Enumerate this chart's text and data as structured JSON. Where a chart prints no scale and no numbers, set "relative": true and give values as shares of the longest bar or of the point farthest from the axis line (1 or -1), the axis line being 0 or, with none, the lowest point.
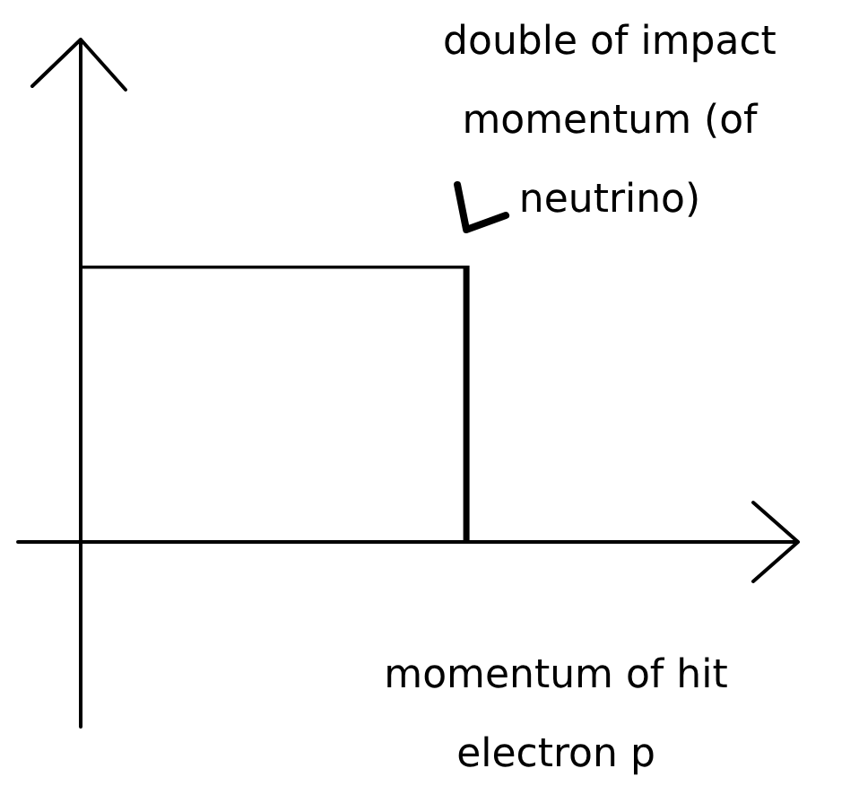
{
  "chart_data": {
    "type": "step",
    "relative": true,
    "categories": [
      null,
      null
    ],
    "series": [
      {
        "color": "#000000",
        "values": [
          1,
          0
        ]
      }
    ],
    "xlabel": "momentum of hit electron p",
    "annotations": [
      "double of impact momentum (of neutrino)"
    ],
    "legend": false,
    "marker": "none",
    "line_style": "solid"
  }
}
